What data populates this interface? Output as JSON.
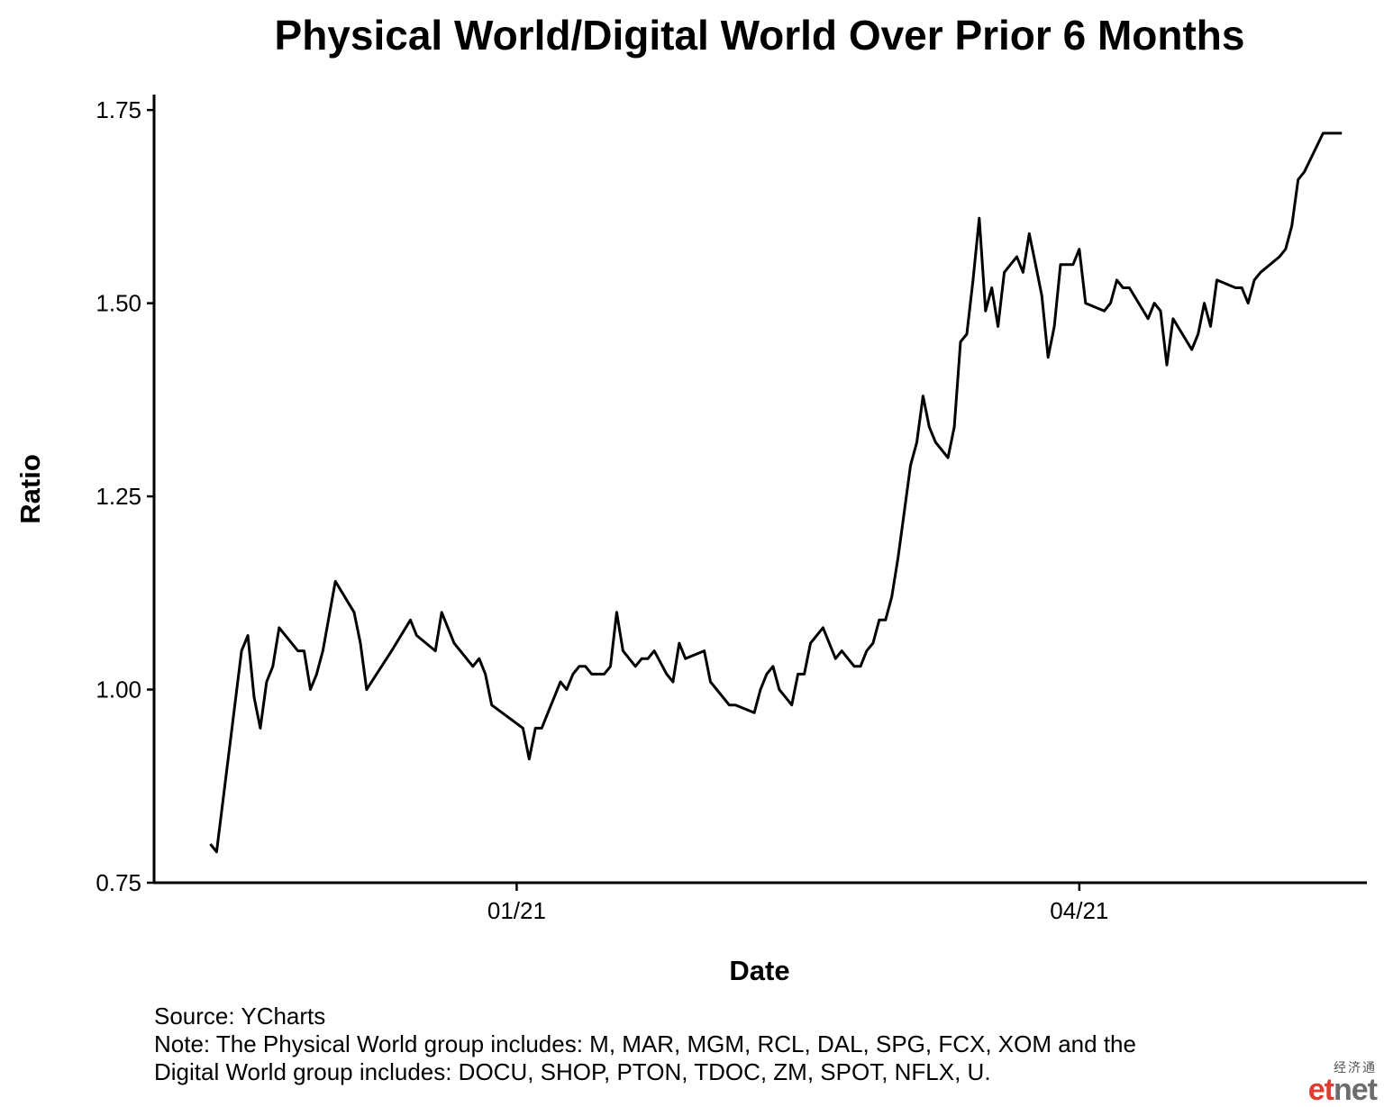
{
  "chart_data": {
    "type": "line",
    "title": "Physical World/Digital World Over Prior 6 Months",
    "xlabel": "Date",
    "ylabel": "Ratio",
    "xlim": [
      "2020-11-04",
      "2021-05-17"
    ],
    "ylim": [
      0.75,
      1.77
    ],
    "x_ticks": [
      {
        "value": "2021-01-01",
        "label": "01/21"
      },
      {
        "value": "2021-04-01",
        "label": "04/21"
      }
    ],
    "y_ticks": [
      {
        "value": 0.75,
        "label": "0.75"
      },
      {
        "value": 1.0,
        "label": "1.00"
      },
      {
        "value": 1.25,
        "label": "1.25"
      },
      {
        "value": 1.5,
        "label": "1.50"
      },
      {
        "value": 1.75,
        "label": "1.75"
      }
    ],
    "grid": false,
    "legend": "none",
    "line_color": "#000000",
    "series": [
      {
        "x": [
          "2020-11-13",
          "2020-11-14",
          "2020-11-18",
          "2020-11-19",
          "2020-11-20",
          "2020-11-21",
          "2020-11-22",
          "2020-11-23",
          "2020-11-24",
          "2020-11-27",
          "2020-11-28",
          "2020-11-29",
          "2020-11-30",
          "2020-12-01",
          "2020-12-03",
          "2020-12-06",
          "2020-12-07",
          "2020-12-08",
          "2020-12-12",
          "2020-12-15",
          "2020-12-16",
          "2020-12-19",
          "2020-12-20",
          "2020-12-21",
          "2020-12-22",
          "2020-12-25",
          "2020-12-26",
          "2020-12-27",
          "2020-12-28",
          "2021-01-02",
          "2021-01-03",
          "2021-01-04",
          "2021-01-05",
          "2021-01-06",
          "2021-01-08",
          "2021-01-09",
          "2021-01-10",
          "2021-01-11",
          "2021-01-12",
          "2021-01-13",
          "2021-01-15",
          "2021-01-16",
          "2021-01-17",
          "2021-01-18",
          "2021-01-20",
          "2021-01-21",
          "2021-01-22",
          "2021-01-23",
          "2021-01-25",
          "2021-01-26",
          "2021-01-27",
          "2021-01-28",
          "2021-01-31",
          "2021-02-01",
          "2021-02-02",
          "2021-02-03",
          "2021-02-04",
          "2021-02-05",
          "2021-02-08",
          "2021-02-09",
          "2021-02-10",
          "2021-02-11",
          "2021-02-12",
          "2021-02-13",
          "2021-02-14",
          "2021-02-15",
          "2021-02-16",
          "2021-02-17",
          "2021-02-19",
          "2021-02-21",
          "2021-02-22",
          "2021-02-23",
          "2021-02-24",
          "2021-02-25",
          "2021-02-26",
          "2021-02-27",
          "2021-02-28",
          "2021-03-01",
          "2021-03-02",
          "2021-03-03",
          "2021-03-04",
          "2021-03-05",
          "2021-03-06",
          "2021-03-07",
          "2021-03-08",
          "2021-03-09",
          "2021-03-10",
          "2021-03-11",
          "2021-03-12",
          "2021-03-13",
          "2021-03-14",
          "2021-03-15",
          "2021-03-16",
          "2021-03-17",
          "2021-03-18",
          "2021-03-19",
          "2021-03-20",
          "2021-03-21",
          "2021-03-22",
          "2021-03-23",
          "2021-03-24",
          "2021-03-25",
          "2021-03-26",
          "2021-03-27",
          "2021-03-28",
          "2021-03-29",
          "2021-03-30",
          "2021-03-31",
          "2021-04-01",
          "2021-04-02",
          "2021-04-05",
          "2021-04-06",
          "2021-04-07",
          "2021-04-08",
          "2021-04-09",
          "2021-04-12",
          "2021-04-13",
          "2021-04-14",
          "2021-04-15",
          "2021-04-16",
          "2021-04-19",
          "2021-04-20",
          "2021-04-21",
          "2021-04-22",
          "2021-04-23",
          "2021-04-26",
          "2021-04-27",
          "2021-04-28",
          "2021-04-29",
          "2021-04-30",
          "2021-05-03",
          "2021-05-04",
          "2021-05-05",
          "2021-05-06",
          "2021-05-07",
          "2021-05-10",
          "2021-05-11",
          "2021-05-12",
          "2021-05-13"
        ],
        "y": [
          0.8,
          0.79,
          1.05,
          1.07,
          0.99,
          0.95,
          1.01,
          1.03,
          1.08,
          1.05,
          1.05,
          1.0,
          1.02,
          1.05,
          1.14,
          1.1,
          1.06,
          1.0,
          1.05,
          1.09,
          1.07,
          1.05,
          1.1,
          1.08,
          1.06,
          1.03,
          1.04,
          1.02,
          0.98,
          0.95,
          0.91,
          0.95,
          0.95,
          0.97,
          1.01,
          1.0,
          1.02,
          1.03,
          1.03,
          1.02,
          1.02,
          1.03,
          1.1,
          1.05,
          1.03,
          1.04,
          1.04,
          1.05,
          1.02,
          1.01,
          1.06,
          1.04,
          1.05,
          1.01,
          1.0,
          0.99,
          0.98,
          0.98,
          0.97,
          1.0,
          1.02,
          1.03,
          1.0,
          0.99,
          0.98,
          1.02,
          1.02,
          1.06,
          1.08,
          1.04,
          1.05,
          1.04,
          1.03,
          1.03,
          1.05,
          1.06,
          1.09,
          1.09,
          1.12,
          1.17,
          1.23,
          1.29,
          1.32,
          1.38,
          1.34,
          1.32,
          1.31,
          1.3,
          1.34,
          1.45,
          1.46,
          1.53,
          1.61,
          1.49,
          1.52,
          1.47,
          1.54,
          1.55,
          1.56,
          1.54,
          1.59,
          1.55,
          1.51,
          1.43,
          1.47,
          1.55,
          1.55,
          1.55,
          1.57,
          1.5,
          1.49,
          1.5,
          1.53,
          1.52,
          1.52,
          1.48,
          1.5,
          1.49,
          1.42,
          1.48,
          1.44,
          1.46,
          1.5,
          1.47,
          1.53,
          1.52,
          1.52,
          1.5,
          1.53,
          1.54,
          1.56,
          1.57,
          1.6,
          1.66,
          1.67,
          1.72,
          1.72,
          1.72,
          1.72
        ]
      }
    ]
  },
  "footer": {
    "source": "Source: YCharts",
    "note_line1": "Note: The Physical World group includes: M, MAR, MGM, RCL, DAL, SPG, FCX, XOM and the",
    "note_line2": "Digital World group includes: DOCU, SHOP, PTON, TDOC, ZM, SPOT, NFLX, U."
  },
  "watermark": {
    "small": "经济通",
    "brand_a": "et",
    "brand_b": "net"
  }
}
